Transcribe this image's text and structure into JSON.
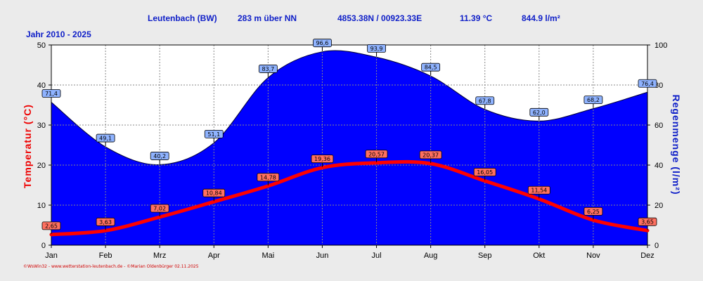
{
  "header": {
    "station": "Leutenbach (BW)",
    "altitude": "283 m über NN",
    "coords": "4853.38N / 00923.33E",
    "avg_temp": "11.39 °C",
    "rain_total": "844.9 l/m²"
  },
  "period": "Jahr  2010 - 2025",
  "footer": "©WsWin32 - www.wetterstation-leutenbach.de - ©Marian Oldenbürger  02.11.2025",
  "colors": {
    "rain": "#0000ff",
    "temp": "#ff0000",
    "header": "#1020c8"
  },
  "chart_data": {
    "type": "area",
    "categories": [
      "Jan",
      "Feb",
      "Mrz",
      "Apr",
      "Mai",
      "Jun",
      "Jul",
      "Aug",
      "Sep",
      "Okt",
      "Nov",
      "Dez"
    ],
    "ylabel_left": "Temperatur (°C)",
    "ylabel_right": "Regenmenge (l/m²)",
    "ylim_left": [
      0,
      50
    ],
    "ylim_right": [
      0,
      100
    ],
    "yticks_left": [
      "0",
      "10",
      "20",
      "30",
      "40",
      "50"
    ],
    "yticks_right": [
      "0",
      "20",
      "40",
      "60",
      "80",
      "100"
    ],
    "grid": true,
    "series": [
      {
        "axis": "right",
        "type": "area",
        "values": [
          71.4,
          49.1,
          40.2,
          51.1,
          83.7,
          96.6,
          93.9,
          84.5,
          67.8,
          62.0,
          68.2,
          76.4
        ],
        "labels": [
          "71,4",
          "49,1",
          "40,2",
          "51,1",
          "83,7",
          "96,6",
          "93,9",
          "84,5",
          "67,8",
          "62,0",
          "68,2",
          "76,4"
        ]
      },
      {
        "axis": "left",
        "type": "line",
        "values": [
          2.65,
          3.63,
          7.02,
          10.84,
          14.78,
          19.36,
          20.57,
          20.37,
          16.05,
          11.54,
          6.25,
          3.65
        ],
        "labels": [
          "2,65",
          "3,63",
          "7,02",
          "10,84",
          "14,78",
          "19,36",
          "20,57",
          "20,37",
          "16,05",
          "11,54",
          "6,25",
          "3,65"
        ]
      }
    ]
  }
}
